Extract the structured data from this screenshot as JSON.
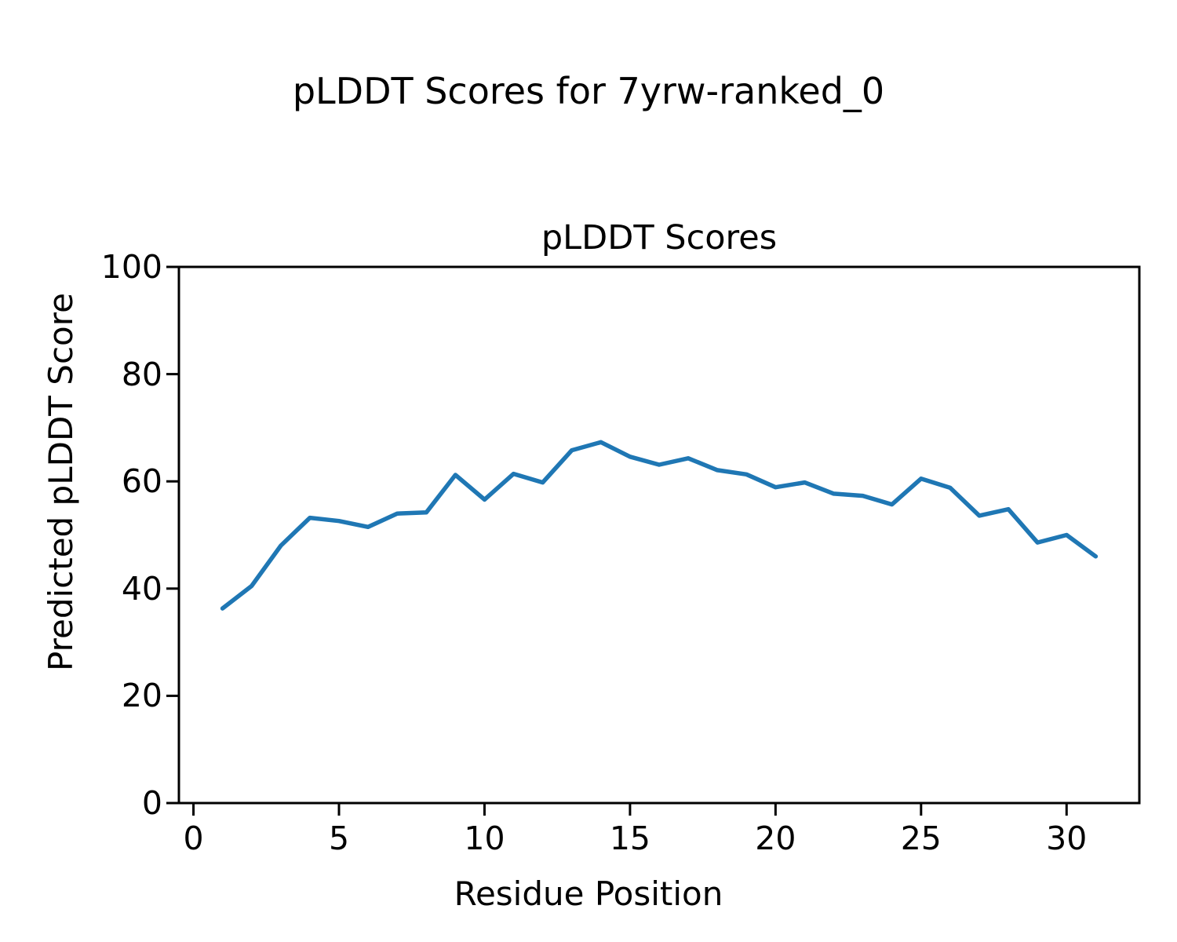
{
  "figure": {
    "suptitle": "pLDDT Scores for 7yrw-ranked_0",
    "background_color": "#ffffff",
    "text_color": "#000000"
  },
  "chart_data": {
    "type": "line",
    "title": "pLDDT Scores",
    "xlabel": "Residue Position",
    "ylabel": "Predicted pLDDT Score",
    "x": [
      1,
      2,
      3,
      4,
      5,
      6,
      7,
      8,
      9,
      10,
      11,
      12,
      13,
      14,
      15,
      16,
      17,
      18,
      19,
      20,
      21,
      22,
      23,
      24,
      25,
      26,
      27,
      28,
      29,
      30,
      31
    ],
    "series": [
      {
        "name": "pLDDT",
        "values": [
          36.3,
          40.5,
          48.0,
          53.2,
          52.6,
          51.5,
          54.0,
          54.2,
          61.2,
          56.6,
          61.4,
          59.8,
          65.8,
          67.3,
          64.6,
          63.1,
          64.3,
          62.1,
          61.3,
          58.9,
          59.8,
          57.7,
          57.3,
          55.7,
          60.5,
          58.8,
          53.6,
          54.8,
          48.6,
          50.0,
          46.0
        ]
      }
    ],
    "xlim": [
      -0.5,
      32.5
    ],
    "ylim": [
      0,
      100
    ],
    "x_ticks": [
      0,
      5,
      10,
      15,
      20,
      25,
      30
    ],
    "y_ticks": [
      0,
      20,
      40,
      60,
      80,
      100
    ],
    "grid": false,
    "legend": "none",
    "line_color": "#1f77b4",
    "spine_color": "#000000"
  }
}
